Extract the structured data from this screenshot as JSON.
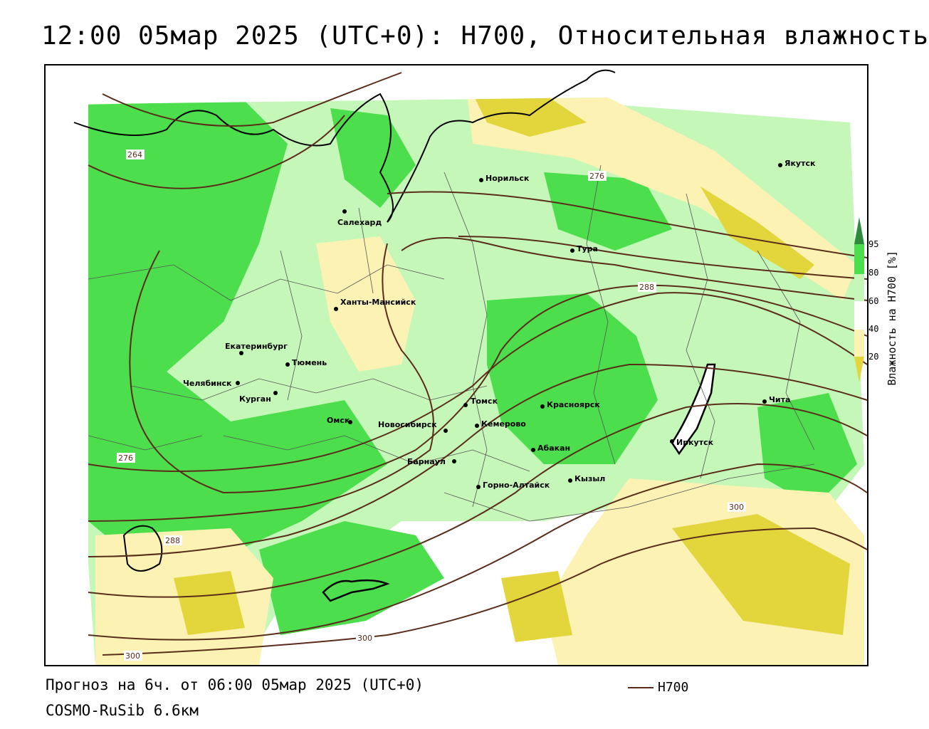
{
  "title": "12:00 05мар 2025 (UTC+0): H700, Относительная влажность",
  "footer": {
    "forecast": "Прогноз на 6ч. от 06:00 05мар 2025 (UTC+0)",
    "model": "COSMO-RuSib 6.6км",
    "contour_legend": "H700"
  },
  "colorbar": {
    "title": "Влажность на H700 [%]",
    "ticks": [
      "95",
      "80",
      "60",
      "40",
      "20"
    ],
    "colors": {
      "above95": "#2e8b3e",
      "c80_95": "#4cde4c",
      "c60_80": "#c5f7b8",
      "c40_60": "#ffffff",
      "c20_40": "#fbf2b4",
      "below20": "#e3d63d"
    }
  },
  "cities": [
    {
      "name": "Якутск"
    },
    {
      "name": "Норильск"
    },
    {
      "name": "Салехард"
    },
    {
      "name": "Тура"
    },
    {
      "name": "Ханты-Мансийск"
    },
    {
      "name": "Екатеринбург"
    },
    {
      "name": "Тюмень"
    },
    {
      "name": "Челябинск"
    },
    {
      "name": "Курган"
    },
    {
      "name": "Омск"
    },
    {
      "name": "Томск"
    },
    {
      "name": "Красноярск"
    },
    {
      "name": "Кемерово"
    },
    {
      "name": "Новосибирск"
    },
    {
      "name": "Абакан"
    },
    {
      "name": "Барнаул"
    },
    {
      "name": "Иркутск"
    },
    {
      "name": "Чита"
    },
    {
      "name": "Горно-Алтайск"
    },
    {
      "name": "Кызыл"
    }
  ],
  "isoline_labels": [
    "264",
    "276",
    "276",
    "288",
    "288",
    "300",
    "300",
    "300"
  ]
}
